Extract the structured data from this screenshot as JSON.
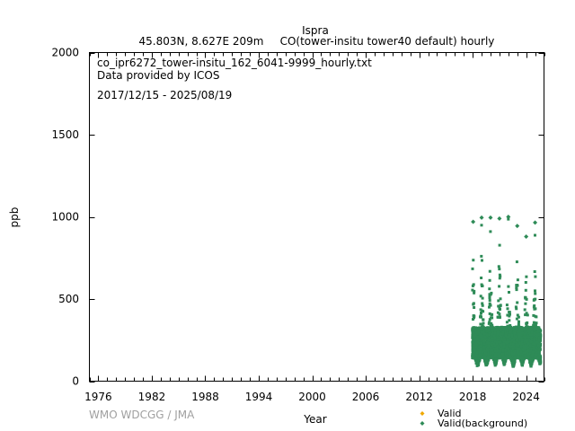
{
  "chart_data": {
    "type": "scatter",
    "title": "Ispra",
    "subtitle_left": "45.803N, 8.627E 209m",
    "subtitle_right": "CO(tower-insitu tower40 default) hourly",
    "xlabel": "Year",
    "ylabel": "ppb",
    "xlim": [
      1975,
      2026
    ],
    "ylim": [
      0,
      2000
    ],
    "x_ticks": [
      1976,
      1982,
      1988,
      1994,
      2000,
      2006,
      2012,
      2018,
      2024
    ],
    "x_tick_labels": [
      "1976",
      "1982",
      "1988",
      "1994",
      "2000",
      "2006",
      "2012",
      "2018",
      "2024"
    ],
    "x_minor_step": 1,
    "y_ticks": [
      0,
      500,
      1000,
      1500,
      2000
    ],
    "y_tick_labels": [
      "0",
      "500",
      "1000",
      "1500",
      "2000"
    ],
    "grid": false,
    "annotations": {
      "file_name": "co_ipr6272_tower-insitu_162_6041-9999_hourly.txt",
      "provider": "Data provided by ICOS",
      "date_range": "2017/12/15 - 2025/08/19"
    },
    "watermark": "WMO WDCGG / JMA",
    "legend": {
      "placement": "bottom-right",
      "entries": [
        {
          "label": "Valid",
          "color": "#f0a800"
        },
        {
          "label": "Valid(background)",
          "color": "#2e8b57"
        }
      ]
    },
    "series": [
      {
        "name": "Valid(background)",
        "color": "#2e8b57",
        "start": 2017.96,
        "end": 2025.63,
        "baseline_min_ppb": 80,
        "dense_band_max_ppb": 330,
        "winter_peaks": [
          {
            "x": 2018.05,
            "peak": 970
          },
          {
            "x": 2019.0,
            "peak": 995
          },
          {
            "x": 2020.0,
            "peak": 995
          },
          {
            "x": 2021.0,
            "peak": 990
          },
          {
            "x": 2022.0,
            "peak": 1000
          },
          {
            "x": 2023.0,
            "peak": 945
          },
          {
            "x": 2024.0,
            "peak": 880
          },
          {
            "x": 2025.0,
            "peak": 965
          }
        ],
        "summer_mins": [
          {
            "x": 2018.55,
            "min": 80
          },
          {
            "x": 2019.55,
            "min": 85
          },
          {
            "x": 2020.55,
            "min": 90
          },
          {
            "x": 2021.55,
            "min": 95
          },
          {
            "x": 2022.55,
            "min": 85
          },
          {
            "x": 2023.55,
            "min": 90
          },
          {
            "x": 2024.55,
            "min": 85
          },
          {
            "x": 2025.55,
            "min": 95
          }
        ]
      },
      {
        "name": "Valid",
        "color": "#f0a800",
        "points": []
      }
    ]
  }
}
